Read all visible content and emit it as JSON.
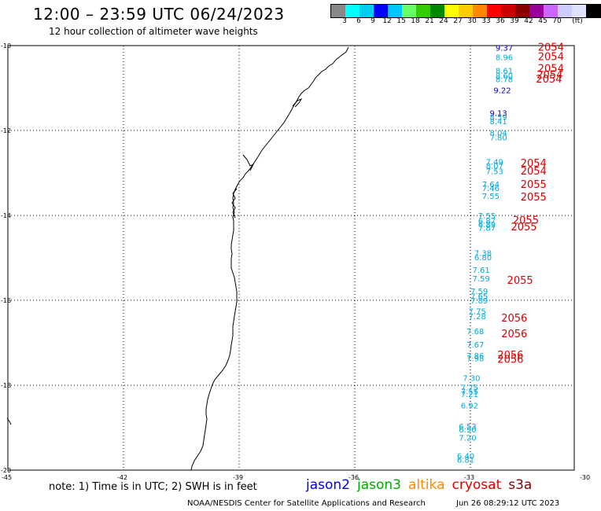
{
  "header": {
    "title": "12:00 – 23:59 UTC 06/24/2023",
    "subtitle": "12 hour collection of altimeter wave heights"
  },
  "scale": {
    "colors": [
      "#888888",
      "#00ffff",
      "#00ccee",
      "#0000ff",
      "#00c8ff",
      "#66ff66",
      "#33cc00",
      "#008800",
      "#ffff00",
      "#ffcc00",
      "#ff8800",
      "#ff0000",
      "#cc0000",
      "#880000",
      "#990099",
      "#cc66ff",
      "#ccccff",
      "#e0e0ff",
      "#000000"
    ],
    "labels": [
      "3",
      "6",
      "9",
      "12",
      "15",
      "18",
      "21",
      "24",
      "27",
      "30",
      "33",
      "36",
      "39",
      "42",
      "45",
      "70",
      "(ft)"
    ]
  },
  "axes": {
    "lat_labels": [
      "-10",
      "-12",
      "-14",
      "-16",
      "-18",
      "-20"
    ],
    "lon_labels": [
      "-45",
      "-42",
      "-39",
      "-36",
      "-33",
      "-30"
    ]
  },
  "wave_heights": [
    {
      "v": "9.37",
      "lat": -10.05,
      "lon": -32.35,
      "c": "#0000cc"
    },
    {
      "v": "8.96",
      "lat": -10.27,
      "lon": -32.35,
      "c": "#00aadd"
    },
    {
      "v": "8.61",
      "lat": -10.58,
      "lon": -32.35,
      "c": "#00aadd"
    },
    {
      "v": "8.60",
      "lat": -10.7,
      "lon": -32.35,
      "c": "#00aadd"
    },
    {
      "v": "8.78",
      "lat": -10.79,
      "lon": -32.35,
      "c": "#00aadd"
    },
    {
      "v": "9.22",
      "lat": -11.05,
      "lon": -32.4,
      "c": "#0000cc"
    },
    {
      "v": "9.13",
      "lat": -11.58,
      "lon": -32.5,
      "c": "#0000cc"
    },
    {
      "v": "8.59",
      "lat": -11.68,
      "lon": -32.5,
      "c": "#00aadd"
    },
    {
      "v": "8.41",
      "lat": -11.78,
      "lon": -32.5,
      "c": "#00aadd"
    },
    {
      "v": "8.04",
      "lat": -12.05,
      "lon": -32.5,
      "c": "#00aadd"
    },
    {
      "v": "7.80",
      "lat": -12.16,
      "lon": -32.5,
      "c": "#00aadd"
    },
    {
      "v": "7.49",
      "lat": -12.73,
      "lon": -32.6,
      "c": "#00aadd"
    },
    {
      "v": "8.07",
      "lat": -12.82,
      "lon": -32.6,
      "c": "#00aadd"
    },
    {
      "v": "7.53",
      "lat": -12.95,
      "lon": -32.6,
      "c": "#00aadd"
    },
    {
      "v": "7.64",
      "lat": -13.26,
      "lon": -32.7,
      "c": "#00aadd"
    },
    {
      "v": "7.46",
      "lat": -13.35,
      "lon": -32.7,
      "c": "#00aadd"
    },
    {
      "v": "7.55",
      "lat": -13.54,
      "lon": -32.7,
      "c": "#00aadd"
    },
    {
      "v": "7.55",
      "lat": -14.0,
      "lon": -32.8,
      "c": "#00aadd"
    },
    {
      "v": "6.87",
      "lat": -14.12,
      "lon": -32.8,
      "c": "#00aadd"
    },
    {
      "v": "6.89",
      "lat": -14.2,
      "lon": -32.8,
      "c": "#00aadd"
    },
    {
      "v": "7.87",
      "lat": -14.29,
      "lon": -32.8,
      "c": "#00aadd"
    },
    {
      "v": "7.38",
      "lat": -14.88,
      "lon": -32.9,
      "c": "#00aadd"
    },
    {
      "v": "6.80",
      "lat": -14.98,
      "lon": -32.9,
      "c": "#00aadd"
    },
    {
      "v": "7.61",
      "lat": -15.28,
      "lon": -32.95,
      "c": "#00aadd"
    },
    {
      "v": "7.59",
      "lat": -15.48,
      "lon": -32.95,
      "c": "#00aadd"
    },
    {
      "v": "7.59",
      "lat": -15.78,
      "lon": -33.0,
      "c": "#00aadd"
    },
    {
      "v": "7.65",
      "lat": -15.9,
      "lon": -33.0,
      "c": "#00aadd"
    },
    {
      "v": "7.89",
      "lat": -16.0,
      "lon": -33.0,
      "c": "#00aadd"
    },
    {
      "v": "7.75",
      "lat": -16.25,
      "lon": -33.05,
      "c": "#00aadd"
    },
    {
      "v": "7.28",
      "lat": -16.37,
      "lon": -33.05,
      "c": "#00aadd"
    },
    {
      "v": "7.68",
      "lat": -16.72,
      "lon": -33.1,
      "c": "#00aadd"
    },
    {
      "v": "7.67",
      "lat": -17.04,
      "lon": -33.1,
      "c": "#00aadd"
    },
    {
      "v": "7.86",
      "lat": -17.3,
      "lon": -33.1,
      "c": "#00aadd"
    },
    {
      "v": "7.98",
      "lat": -17.36,
      "lon": -33.1,
      "c": "#00aadd"
    },
    {
      "v": "7.30",
      "lat": -17.82,
      "lon": -33.2,
      "c": "#00aadd"
    },
    {
      "v": "7.75",
      "lat": -18.05,
      "lon": -33.25,
      "c": "#00aadd"
    },
    {
      "v": "7.55",
      "lat": -18.14,
      "lon": -33.25,
      "c": "#00aadd"
    },
    {
      "v": "7.21",
      "lat": -18.2,
      "lon": -33.25,
      "c": "#00aadd"
    },
    {
      "v": "6.92",
      "lat": -18.47,
      "lon": -33.25,
      "c": "#00aadd"
    },
    {
      "v": "6.53",
      "lat": -18.96,
      "lon": -33.3,
      "c": "#00aadd"
    },
    {
      "v": "6.90",
      "lat": -19.04,
      "lon": -33.3,
      "c": "#00aadd"
    },
    {
      "v": "7.20",
      "lat": -19.23,
      "lon": -33.3,
      "c": "#00aadd"
    },
    {
      "v": "6.40",
      "lat": -19.66,
      "lon": -33.35,
      "c": "#00aadd"
    },
    {
      "v": "6.81",
      "lat": -19.75,
      "lon": -33.35,
      "c": "#00aadd"
    }
  ],
  "timestamps": [
    {
      "v": "2054",
      "lat": -10.05,
      "lon": -31.25
    },
    {
      "v": "2054",
      "lat": -10.27,
      "lon": -31.25
    },
    {
      "v": "2054",
      "lat": -10.55,
      "lon": -31.25
    },
    {
      "v": "2054",
      "lat": -10.69,
      "lon": -31.28
    },
    {
      "v": "2054",
      "lat": -10.8,
      "lon": -31.3
    },
    {
      "v": "2054",
      "lat": -12.78,
      "lon": -31.7
    },
    {
      "v": "2054",
      "lat": -12.96,
      "lon": -31.7
    },
    {
      "v": "2055",
      "lat": -13.28,
      "lon": -31.7
    },
    {
      "v": "2055",
      "lat": -13.57,
      "lon": -31.7
    },
    {
      "v": "2055",
      "lat": -14.12,
      "lon": -31.9
    },
    {
      "v": "2055",
      "lat": -14.28,
      "lon": -31.95
    },
    {
      "v": "2055",
      "lat": -15.54,
      "lon": -32.05
    },
    {
      "v": "2056",
      "lat": -16.43,
      "lon": -32.2
    },
    {
      "v": "2056",
      "lat": -16.8,
      "lon": -32.2
    },
    {
      "v": "2056",
      "lat": -17.3,
      "lon": -32.3
    },
    {
      "v": "2056",
      "lat": -17.4,
      "lon": -32.3
    }
  ],
  "note": "note: 1) Time is in UTC; 2) SWH is in feet",
  "satellites": [
    {
      "name": "jason2",
      "color": "#0000ff"
    },
    {
      "name": "jason3",
      "color": "#00aa00"
    },
    {
      "name": "altika",
      "color": "#ff8800"
    },
    {
      "name": "cryosat",
      "color": "#dd0000"
    },
    {
      "name": "s3a",
      "color": "#880000"
    }
  ],
  "footer": "NOAA/NESDIS Center for Satellite Applications and Research",
  "stamp": "Jun 26 08:29:12 UTC 2023"
}
